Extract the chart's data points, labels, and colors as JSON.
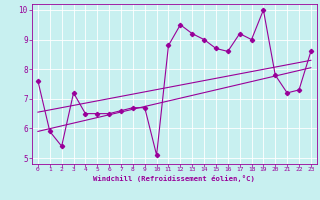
{
  "xlabel": "Windchill (Refroidissement éolien,°C)",
  "ylabel": "",
  "bg_color": "#c8f0f0",
  "line_color": "#990099",
  "xlim": [
    -0.5,
    23.5
  ],
  "ylim": [
    4.8,
    10.2
  ],
  "xticks": [
    0,
    1,
    2,
    3,
    4,
    5,
    6,
    7,
    8,
    9,
    10,
    11,
    12,
    13,
    14,
    15,
    16,
    17,
    18,
    19,
    20,
    21,
    22,
    23
  ],
  "yticks": [
    5,
    6,
    7,
    8,
    9,
    10
  ],
  "main_x": [
    0,
    1,
    2,
    3,
    4,
    5,
    6,
    7,
    8,
    9,
    10,
    11,
    12,
    13,
    14,
    15,
    16,
    17,
    18,
    19,
    20,
    21,
    22,
    23
  ],
  "main_y": [
    7.6,
    5.9,
    5.4,
    7.2,
    6.5,
    6.5,
    6.5,
    6.6,
    6.7,
    6.7,
    5.1,
    8.8,
    9.5,
    9.2,
    9.0,
    8.7,
    8.6,
    9.2,
    9.0,
    10.0,
    7.8,
    7.2,
    7.3,
    8.6
  ],
  "trend1_x": [
    0,
    23
  ],
  "trend1_y": [
    6.55,
    8.3
  ],
  "trend2_x": [
    0,
    23
  ],
  "trend2_y": [
    5.9,
    8.05
  ],
  "marker": "D",
  "markersize": 2.2,
  "linewidth": 0.8
}
